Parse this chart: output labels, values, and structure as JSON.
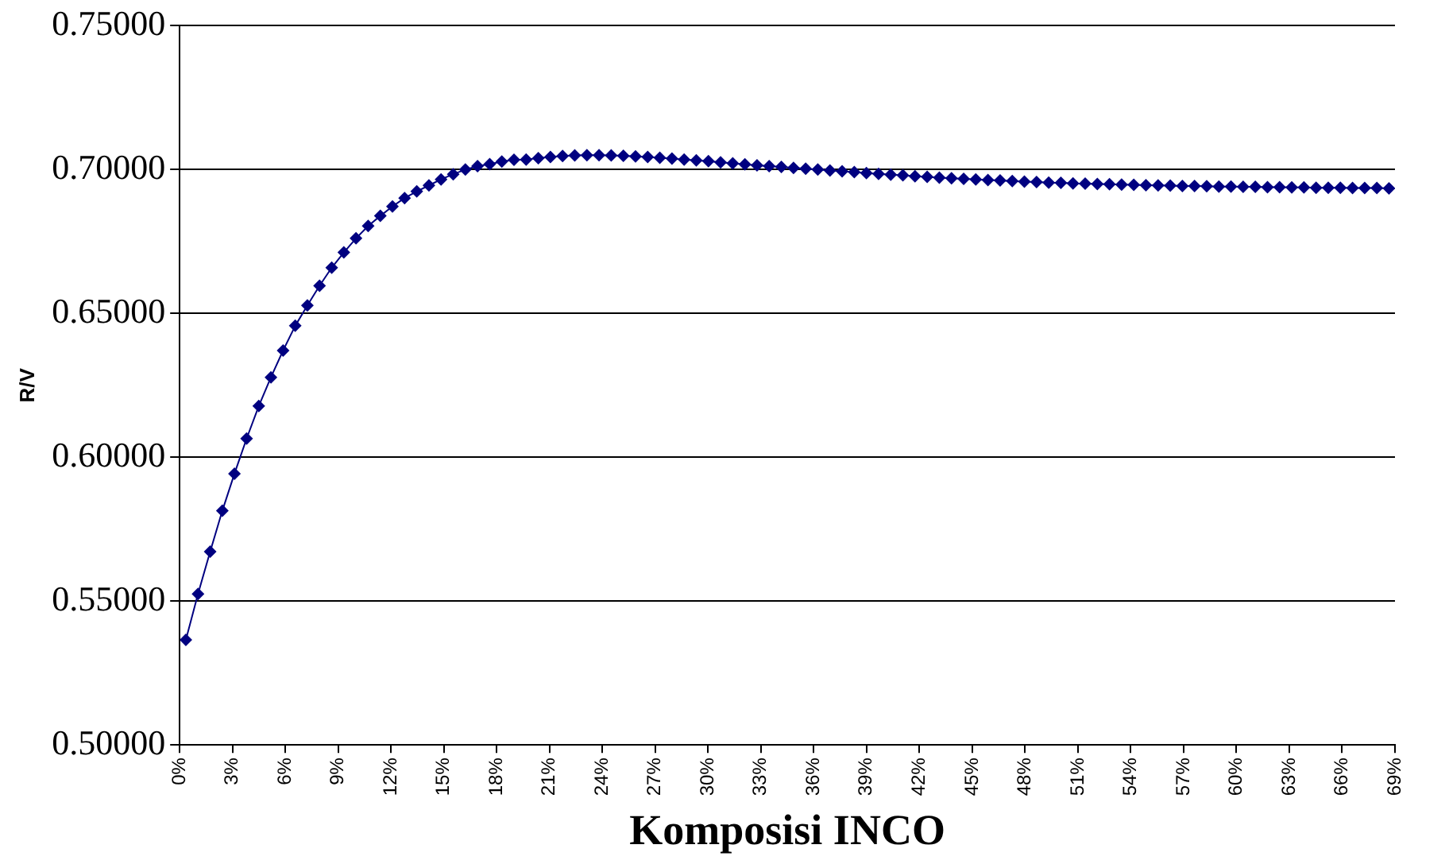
{
  "chart_data": {
    "type": "line",
    "xlabel": "Komposisi INCO",
    "ylabel": "R/V",
    "x": [
      0.35,
      1.04,
      1.73,
      2.42,
      3.11,
      3.8,
      4.49,
      5.18,
      5.87,
      6.56,
      7.25,
      7.94,
      8.63,
      9.32,
      10.01,
      10.7,
      11.39,
      12.08,
      12.77,
      13.46,
      14.15,
      14.84,
      15.53,
      16.22,
      16.91,
      17.6,
      18.29,
      18.98,
      19.67,
      20.36,
      21.05,
      21.74,
      22.43,
      23.12,
      23.81,
      24.5,
      25.19,
      25.88,
      26.57,
      27.26,
      27.95,
      28.64,
      29.33,
      30.02,
      30.71,
      31.4,
      32.09,
      32.78,
      33.47,
      34.16,
      34.85,
      35.54,
      36.23,
      36.92,
      37.61,
      38.3,
      38.99,
      39.68,
      40.37,
      41.06,
      41.75,
      42.44,
      43.13,
      43.82,
      44.51,
      45.2,
      45.89,
      46.58,
      47.27,
      47.96,
      48.65,
      49.34,
      50.03,
      50.72,
      51.41,
      52.1,
      52.79,
      53.48,
      54.17,
      54.86,
      55.55,
      56.24,
      56.93,
      57.62,
      58.31,
      59.0,
      59.69,
      60.38,
      61.07,
      61.76,
      62.45,
      63.14,
      63.83,
      64.52,
      65.21,
      65.9,
      66.59,
      67.28,
      67.97,
      68.66
    ],
    "series": [
      {
        "color": "#000080",
        "values": [
          0.5365,
          0.5525,
          0.5672,
          0.5814,
          0.5943,
          0.6065,
          0.6178,
          0.6278,
          0.6371,
          0.6457,
          0.6528,
          0.6596,
          0.6659,
          0.6712,
          0.6761,
          0.6804,
          0.6839,
          0.6872,
          0.6901,
          0.6924,
          0.6945,
          0.6966,
          0.6984,
          0.7,
          0.7012,
          0.7019,
          0.7028,
          0.7034,
          0.7035,
          0.704,
          0.7044,
          0.7047,
          0.7049,
          0.705,
          0.705,
          0.7049,
          0.7048,
          0.7046,
          0.7044,
          0.7041,
          0.7038,
          0.7035,
          0.7032,
          0.7029,
          0.7025,
          0.7022,
          0.7018,
          0.7015,
          0.7012,
          0.7009,
          0.7006,
          0.7003,
          0.7,
          0.6997,
          0.6994,
          0.6991,
          0.6988,
          0.6985,
          0.6982,
          0.698,
          0.6977,
          0.6975,
          0.6972,
          0.697,
          0.6968,
          0.6966,
          0.6964,
          0.6962,
          0.696,
          0.6958,
          0.6957,
          0.6955,
          0.6954,
          0.6952,
          0.6951,
          0.695,
          0.6949,
          0.6948,
          0.6947,
          0.6946,
          0.6945,
          0.6944,
          0.6943,
          0.6943,
          0.6942,
          0.6941,
          0.6941,
          0.694,
          0.694,
          0.6939,
          0.6939,
          0.6938,
          0.6938,
          0.6937,
          0.6937,
          0.6937,
          0.6936,
          0.6936,
          0.6936,
          0.6935
        ]
      }
    ],
    "xlim": [
      0,
      69
    ],
    "xticks": [
      {
        "value": 0,
        "label": "0%"
      },
      {
        "value": 3,
        "label": "3%"
      },
      {
        "value": 6,
        "label": "6%"
      },
      {
        "value": 9,
        "label": "9%"
      },
      {
        "value": 12,
        "label": "12%"
      },
      {
        "value": 15,
        "label": "15%"
      },
      {
        "value": 18,
        "label": "18%"
      },
      {
        "value": 21,
        "label": "21%"
      },
      {
        "value": 24,
        "label": "24%"
      },
      {
        "value": 27,
        "label": "27%"
      },
      {
        "value": 30,
        "label": "30%"
      },
      {
        "value": 33,
        "label": "33%"
      },
      {
        "value": 36,
        "label": "36%"
      },
      {
        "value": 39,
        "label": "39%"
      },
      {
        "value": 42,
        "label": "42%"
      },
      {
        "value": 45,
        "label": "45%"
      },
      {
        "value": 48,
        "label": "48%"
      },
      {
        "value": 51,
        "label": "51%"
      },
      {
        "value": 54,
        "label": "54%"
      },
      {
        "value": 57,
        "label": "57%"
      },
      {
        "value": 60,
        "label": "60%"
      },
      {
        "value": 63,
        "label": "63%"
      },
      {
        "value": 66,
        "label": "66%"
      },
      {
        "value": 69,
        "label": "69%"
      }
    ],
    "ylim": [
      0.5,
      0.75
    ],
    "yticks": [
      {
        "value": 0.5,
        "label": "0.50000"
      },
      {
        "value": 0.55,
        "label": "0.55000"
      },
      {
        "value": 0.6,
        "label": "0.60000"
      },
      {
        "value": 0.65,
        "label": "0.65000"
      },
      {
        "value": 0.7,
        "label": "0.70000"
      },
      {
        "value": 0.75,
        "label": "0.75000"
      }
    ],
    "grid": "y",
    "legend": false,
    "marker": "diamond",
    "line_style": "solid"
  }
}
